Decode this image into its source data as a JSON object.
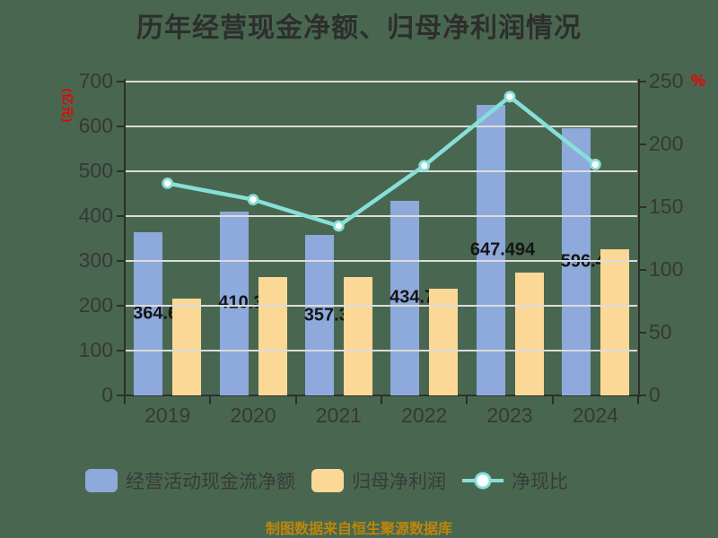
{
  "title": "历年经营现金净额、归母净利润情况",
  "caption": "制图数据来自恒生聚源数据库",
  "colors": {
    "background": "#496750",
    "bar_operating_cash": "#8EA9DB",
    "bar_net_profit": "#FCD897",
    "line_ratio": "#87E0D8",
    "axis": "#2E2E2E",
    "axis_text": "#383838",
    "gridline": "#DCDCDC",
    "unit_text_red": "#EE0000",
    "caption_orange": "#BD860A",
    "bar_value_label": "#141414"
  },
  "chart_data": {
    "type": "bar+line",
    "title": "历年经营现金净额、归母净利润情况",
    "categories": [
      "2019",
      "2020",
      "2021",
      "2022",
      "2023",
      "2024"
    ],
    "left_axis": {
      "unit": "(亿元)",
      "min": 0,
      "max": 700,
      "step": 100,
      "ticks": [
        0,
        100,
        200,
        300,
        400,
        500,
        600,
        700
      ]
    },
    "right_axis": {
      "unit": "%",
      "min": 0,
      "max": 250,
      "step": 50,
      "ticks": [
        0,
        50,
        100,
        150,
        200,
        250
      ]
    },
    "grid": true,
    "legend_position": "bottom",
    "series": [
      {
        "name": "经营活动现金流净额",
        "type": "bar",
        "axis": "left",
        "color": "#8EA9DB",
        "values": [
          364.64,
          410.36,
          357.32,
          434.76,
          647.494,
          596.48
        ],
        "labels": [
          "364.64",
          "410.36",
          "357.32",
          "434.76",
          "647.494",
          "596.48"
        ]
      },
      {
        "name": "归母净利润",
        "type": "bar",
        "axis": "left",
        "color": "#FCD897",
        "values": [
          217,
          265,
          265,
          239,
          275,
          327
        ]
      },
      {
        "name": "净现比",
        "type": "line",
        "axis": "right",
        "color": "#87E0D8",
        "values": [
          169,
          156,
          135,
          183,
          238,
          184
        ]
      }
    ]
  }
}
